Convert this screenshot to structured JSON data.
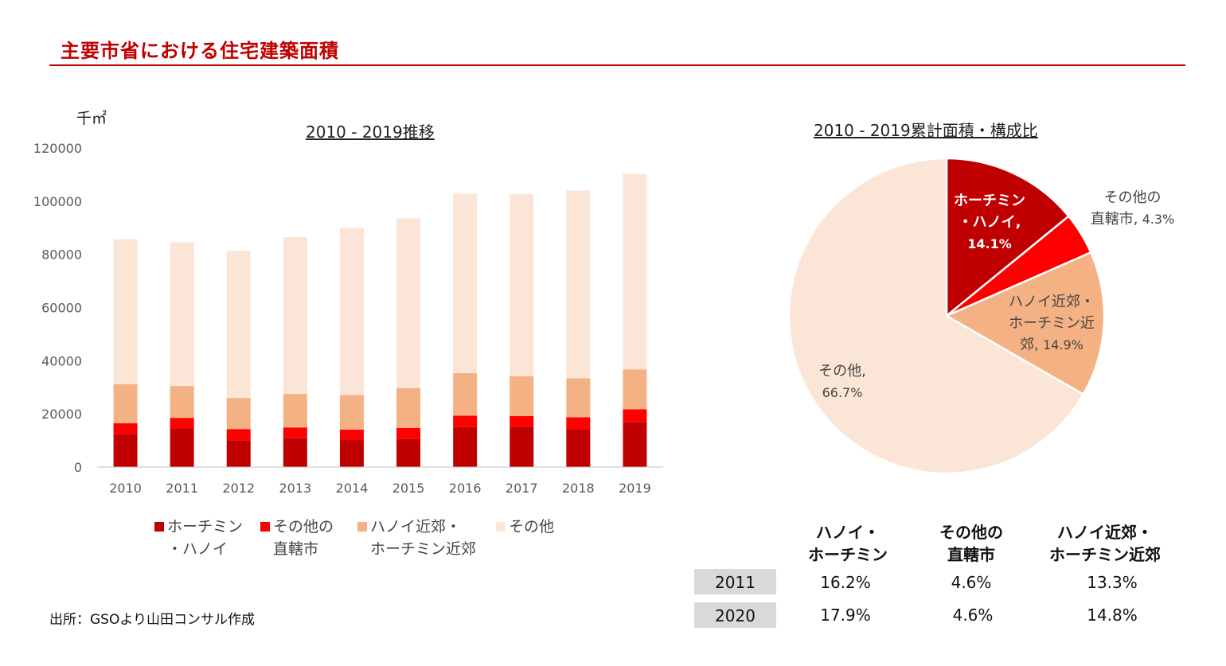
{
  "page": {
    "title": "主要市省における住宅建築面積",
    "source": "出所：GSOより山田コンサル作成"
  },
  "colors": {
    "brand_red": "#c00000",
    "hcm_hanoi": "#c00000",
    "other_cities": "#ff0000",
    "suburbs": "#f4b183",
    "others": "#fbe5d6"
  },
  "chart_data": [
    {
      "type": "bar",
      "stacked": true,
      "title": "2010 - 2019推移",
      "ylabel": "千㎡",
      "ylim": [
        0,
        120000
      ],
      "yticks": [
        "0",
        "20000",
        "40000",
        "60000",
        "80000",
        "100000",
        "120000"
      ],
      "categories": [
        "2010",
        "2011",
        "2012",
        "2013",
        "2014",
        "2015",
        "2016",
        "2017",
        "2018",
        "2019"
      ],
      "grid": false,
      "legend": "bottom",
      "series": [
        {
          "name": "ホーチミン・ハノイ",
          "values": [
            12500,
            14500,
            10000,
            11000,
            10300,
            10700,
            15000,
            15200,
            14200,
            17000
          ]
        },
        {
          "name": "その他の直轄市",
          "values": [
            4000,
            4000,
            4300,
            3900,
            3800,
            4000,
            4300,
            4000,
            4500,
            4700
          ]
        },
        {
          "name": "ハノイ近郊・ホーチミン近郊",
          "values": [
            14700,
            12000,
            11700,
            12600,
            13000,
            15000,
            16000,
            15000,
            14700,
            15000
          ]
        },
        {
          "name": "その他",
          "values": [
            54500,
            54000,
            55400,
            59000,
            62800,
            63800,
            67500,
            68500,
            70600,
            73500
          ]
        }
      ]
    },
    {
      "type": "pie",
      "title": "2010 - 2019累計面積・構成比",
      "slices": [
        {
          "name": "ホーチミン・ハノイ",
          "value": 14.1,
          "label": "14.1%"
        },
        {
          "name": "その他の直轄市",
          "value": 4.3,
          "label": "4.3%"
        },
        {
          "name": "ハノイ近郊・ホーチミン近郊",
          "value": 14.9,
          "label": "14.9%"
        },
        {
          "name": "その他",
          "value": 66.7,
          "label": "66.7%"
        }
      ]
    }
  ],
  "legend_text": {
    "s1_line1": "ホーチミン",
    "s1_line2": "・ハノイ",
    "s2_line1": "その他の",
    "s2_line2": "直轄市",
    "s3_line1": "ハノイ近郊・",
    "s3_line2": "ホーチミン近郊",
    "s4_line1": "その他"
  },
  "pie_labels": {
    "hcm_line1": "ホーチミン",
    "hcm_line2": "・ハノイ,",
    "hcm_pct": "14.1%",
    "other_cities_line1": "その他の",
    "other_cities_line2": "直轄市,",
    "other_cities_pct": "4.3%",
    "suburbs_line1": "ハノイ近郊・",
    "suburbs_line2": "ホーチミン近",
    "suburbs_line3": "郊,",
    "suburbs_pct": "14.9%",
    "others_line1": "その他,",
    "others_pct": "66.7%"
  },
  "share_table": {
    "headers": [
      {
        "line1": "ハノイ・",
        "line2": "ホーチミン"
      },
      {
        "line1": "その他の",
        "line2": "直轄市"
      },
      {
        "line1": "ハノイ近郊・",
        "line2": "ホーチミン近郊"
      }
    ],
    "rows": [
      {
        "year": "2011",
        "values": [
          "16.2%",
          "4.6%",
          "13.3%"
        ]
      },
      {
        "year": "2020",
        "values": [
          "17.9%",
          "4.6%",
          "14.8%"
        ]
      }
    ]
  }
}
